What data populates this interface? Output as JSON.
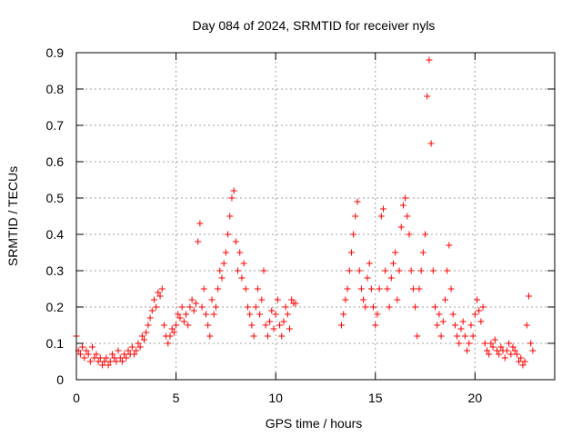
{
  "chart_data": {
    "type": "scatter",
    "title": "Day 084 of 2024, SRMTID for receiver nyls",
    "xlabel": "GPS time / hours",
    "ylabel": "SRMTID / TECUs",
    "xlim": [
      0,
      24
    ],
    "ylim": [
      0,
      0.9
    ],
    "xticks": [
      0,
      5,
      10,
      15,
      20
    ],
    "xtick_labels": [
      "0",
      "5",
      "10",
      "15",
      "20"
    ],
    "yticks": [
      0,
      0.1,
      0.2,
      0.3,
      0.4,
      0.5,
      0.6,
      0.7,
      0.8,
      0.9
    ],
    "ytick_labels": [
      "0",
      "0.1",
      "0.2",
      "0.3",
      "0.4",
      "0.5",
      "0.6",
      "0.7",
      "0.8",
      "0.9"
    ],
    "grid": true,
    "marker": "+",
    "color": "#ff0000",
    "series": [
      {
        "name": "SRMTID",
        "points": [
          [
            0.0,
            0.12
          ],
          [
            0.1,
            0.08
          ],
          [
            0.2,
            0.07
          ],
          [
            0.3,
            0.09
          ],
          [
            0.4,
            0.06
          ],
          [
            0.5,
            0.08
          ],
          [
            0.6,
            0.07
          ],
          [
            0.7,
            0.05
          ],
          [
            0.8,
            0.09
          ],
          [
            0.9,
            0.06
          ],
          [
            1.0,
            0.07
          ],
          [
            1.1,
            0.05
          ],
          [
            1.2,
            0.06
          ],
          [
            1.3,
            0.04
          ],
          [
            1.4,
            0.05
          ],
          [
            1.5,
            0.06
          ],
          [
            1.6,
            0.04
          ],
          [
            1.7,
            0.05
          ],
          [
            1.8,
            0.07
          ],
          [
            1.9,
            0.06
          ],
          [
            2.0,
            0.05
          ],
          [
            2.1,
            0.08
          ],
          [
            2.2,
            0.06
          ],
          [
            2.3,
            0.05
          ],
          [
            2.4,
            0.07
          ],
          [
            2.5,
            0.06
          ],
          [
            2.6,
            0.08
          ],
          [
            2.7,
            0.07
          ],
          [
            2.8,
            0.09
          ],
          [
            2.9,
            0.07
          ],
          [
            3.0,
            0.08
          ],
          [
            3.1,
            0.1
          ],
          [
            3.2,
            0.09
          ],
          [
            3.3,
            0.12
          ],
          [
            3.4,
            0.11
          ],
          [
            3.5,
            0.13
          ],
          [
            3.6,
            0.15
          ],
          [
            3.7,
            0.17
          ],
          [
            3.8,
            0.19
          ],
          [
            3.9,
            0.22
          ],
          [
            4.0,
            0.2
          ],
          [
            4.1,
            0.24
          ],
          [
            4.2,
            0.23
          ],
          [
            4.3,
            0.25
          ],
          [
            4.4,
            0.15
          ],
          [
            4.5,
            0.12
          ],
          [
            4.6,
            0.1
          ],
          [
            4.7,
            0.12
          ],
          [
            4.8,
            0.14
          ],
          [
            4.9,
            0.13
          ],
          [
            5.0,
            0.15
          ],
          [
            5.1,
            0.18
          ],
          [
            5.2,
            0.17
          ],
          [
            5.3,
            0.2
          ],
          [
            5.4,
            0.16
          ],
          [
            5.5,
            0.18
          ],
          [
            5.6,
            0.15
          ],
          [
            5.7,
            0.2
          ],
          [
            5.8,
            0.22
          ],
          [
            5.9,
            0.19
          ],
          [
            6.0,
            0.21
          ],
          [
            6.1,
            0.38
          ],
          [
            6.2,
            0.43
          ],
          [
            6.3,
            0.2
          ],
          [
            6.4,
            0.25
          ],
          [
            6.5,
            0.18
          ],
          [
            6.6,
            0.15
          ],
          [
            6.7,
            0.12
          ],
          [
            6.8,
            0.22
          ],
          [
            6.9,
            0.18
          ],
          [
            7.0,
            0.2
          ],
          [
            7.1,
            0.25
          ],
          [
            7.2,
            0.3
          ],
          [
            7.3,
            0.28
          ],
          [
            7.4,
            0.32
          ],
          [
            7.5,
            0.35
          ],
          [
            7.6,
            0.4
          ],
          [
            7.7,
            0.45
          ],
          [
            7.8,
            0.5
          ],
          [
            7.9,
            0.52
          ],
          [
            8.0,
            0.38
          ],
          [
            8.1,
            0.3
          ],
          [
            8.2,
            0.35
          ],
          [
            8.3,
            0.28
          ],
          [
            8.4,
            0.32
          ],
          [
            8.5,
            0.25
          ],
          [
            8.6,
            0.2
          ],
          [
            8.7,
            0.18
          ],
          [
            8.8,
            0.15
          ],
          [
            8.9,
            0.12
          ],
          [
            9.0,
            0.2
          ],
          [
            9.1,
            0.25
          ],
          [
            9.2,
            0.18
          ],
          [
            9.3,
            0.22
          ],
          [
            9.4,
            0.3
          ],
          [
            9.5,
            0.15
          ],
          [
            9.6,
            0.12
          ],
          [
            9.7,
            0.16
          ],
          [
            9.8,
            0.19
          ],
          [
            9.9,
            0.14
          ],
          [
            10.0,
            0.18
          ],
          [
            10.1,
            0.22
          ],
          [
            10.2,
            0.15
          ],
          [
            10.3,
            0.12
          ],
          [
            10.4,
            0.16
          ],
          [
            10.5,
            0.2
          ],
          [
            10.6,
            0.18
          ],
          [
            10.7,
            0.14
          ],
          [
            10.8,
            0.22
          ],
          [
            10.9,
            0.21
          ],
          [
            11.0,
            0.21
          ],
          [
            13.3,
            0.15
          ],
          [
            13.4,
            0.18
          ],
          [
            13.5,
            0.22
          ],
          [
            13.6,
            0.25
          ],
          [
            13.7,
            0.3
          ],
          [
            13.8,
            0.35
          ],
          [
            13.9,
            0.4
          ],
          [
            14.0,
            0.45
          ],
          [
            14.1,
            0.49
          ],
          [
            14.2,
            0.3
          ],
          [
            14.3,
            0.25
          ],
          [
            14.4,
            0.22
          ],
          [
            14.5,
            0.2
          ],
          [
            14.6,
            0.28
          ],
          [
            14.7,
            0.32
          ],
          [
            14.8,
            0.25
          ],
          [
            14.9,
            0.2
          ],
          [
            15.0,
            0.15
          ],
          [
            15.1,
            0.18
          ],
          [
            15.2,
            0.25
          ],
          [
            15.3,
            0.45
          ],
          [
            15.4,
            0.47
          ],
          [
            15.5,
            0.3
          ],
          [
            15.6,
            0.25
          ],
          [
            15.7,
            0.2
          ],
          [
            15.8,
            0.28
          ],
          [
            15.9,
            0.32
          ],
          [
            16.0,
            0.35
          ],
          [
            16.1,
            0.22
          ],
          [
            16.2,
            0.3
          ],
          [
            16.3,
            0.42
          ],
          [
            16.4,
            0.48
          ],
          [
            16.5,
            0.5
          ],
          [
            16.6,
            0.45
          ],
          [
            16.7,
            0.4
          ],
          [
            16.8,
            0.3
          ],
          [
            16.9,
            0.25
          ],
          [
            17.0,
            0.2
          ],
          [
            17.1,
            0.12
          ],
          [
            17.2,
            0.25
          ],
          [
            17.3,
            0.3
          ],
          [
            17.4,
            0.35
          ],
          [
            17.5,
            0.4
          ],
          [
            17.6,
            0.78
          ],
          [
            17.7,
            0.88
          ],
          [
            17.8,
            0.65
          ],
          [
            17.9,
            0.3
          ],
          [
            18.0,
            0.2
          ],
          [
            18.1,
            0.15
          ],
          [
            18.2,
            0.18
          ],
          [
            18.3,
            0.12
          ],
          [
            18.4,
            0.16
          ],
          [
            18.5,
            0.22
          ],
          [
            18.6,
            0.3
          ],
          [
            18.7,
            0.37
          ],
          [
            18.8,
            0.25
          ],
          [
            18.9,
            0.18
          ],
          [
            19.0,
            0.15
          ],
          [
            19.1,
            0.12
          ],
          [
            19.2,
            0.1
          ],
          [
            19.3,
            0.14
          ],
          [
            19.4,
            0.16
          ],
          [
            19.5,
            0.12
          ],
          [
            19.6,
            0.08
          ],
          [
            19.7,
            0.1
          ],
          [
            19.8,
            0.15
          ],
          [
            19.9,
            0.12
          ],
          [
            20.0,
            0.18
          ],
          [
            20.1,
            0.22
          ],
          [
            20.2,
            0.19
          ],
          [
            20.3,
            0.16
          ],
          [
            20.4,
            0.2
          ],
          [
            20.5,
            0.1
          ],
          [
            20.6,
            0.08
          ],
          [
            20.7,
            0.07
          ],
          [
            20.8,
            0.1
          ],
          [
            20.9,
            0.09
          ],
          [
            21.0,
            0.11
          ],
          [
            21.1,
            0.08
          ],
          [
            21.2,
            0.07
          ],
          [
            21.3,
            0.09
          ],
          [
            21.4,
            0.08
          ],
          [
            21.5,
            0.06
          ],
          [
            21.6,
            0.08
          ],
          [
            21.7,
            0.1
          ],
          [
            21.8,
            0.07
          ],
          [
            21.9,
            0.09
          ],
          [
            22.0,
            0.08
          ],
          [
            22.1,
            0.07
          ],
          [
            22.2,
            0.05
          ],
          [
            22.3,
            0.06
          ],
          [
            22.4,
            0.04
          ],
          [
            22.5,
            0.05
          ],
          [
            22.6,
            0.15
          ],
          [
            22.7,
            0.23
          ],
          [
            22.8,
            0.1
          ],
          [
            22.9,
            0.08
          ]
        ]
      }
    ]
  }
}
